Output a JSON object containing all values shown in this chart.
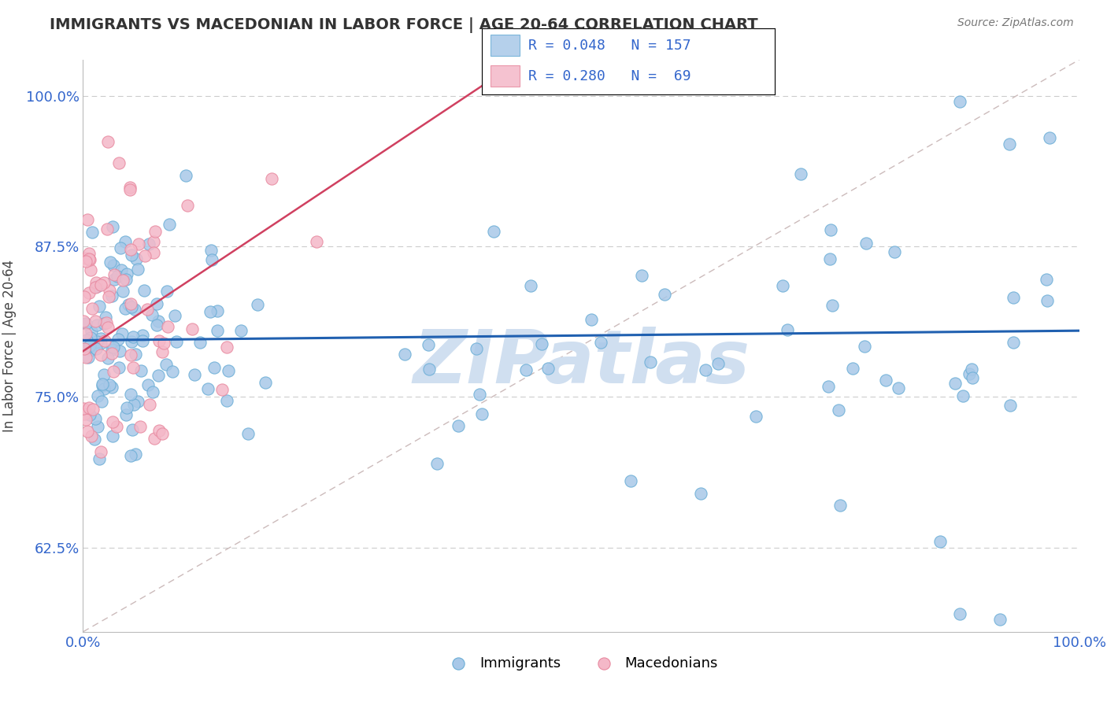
{
  "title": "IMMIGRANTS VS MACEDONIAN IN LABOR FORCE | AGE 20-64 CORRELATION CHART",
  "source": "Source: ZipAtlas.com",
  "ylabel": "In Labor Force | Age 20-64",
  "xlim": [
    0.0,
    1.0
  ],
  "ylim": [
    0.555,
    1.03
  ],
  "yticks": [
    0.625,
    0.75,
    0.875,
    1.0
  ],
  "ytick_labels": [
    "62.5%",
    "75.0%",
    "87.5%",
    "100.0%"
  ],
  "xticks": [
    0.0,
    0.25,
    0.5,
    0.75,
    1.0
  ],
  "xtick_labels": [
    "0.0%",
    "",
    "",
    "",
    "100.0%"
  ],
  "blue_color": "#a8c8e8",
  "blue_edge_color": "#6baed6",
  "pink_color": "#f4b8c8",
  "pink_edge_color": "#e88aa0",
  "blue_R": 0.048,
  "blue_N": 157,
  "pink_R": 0.28,
  "pink_N": 69,
  "trend_blue_color": "#2060b0",
  "trend_pink_color": "#d04060",
  "diag_color": "#ccbbbb",
  "watermark": "ZIPatlas",
  "watermark_color": "#d0dff0",
  "grid_color": "#cccccc",
  "title_color": "#333333",
  "legend_text_color": "#3366cc",
  "background_color": "#ffffff",
  "marker_size": 120
}
